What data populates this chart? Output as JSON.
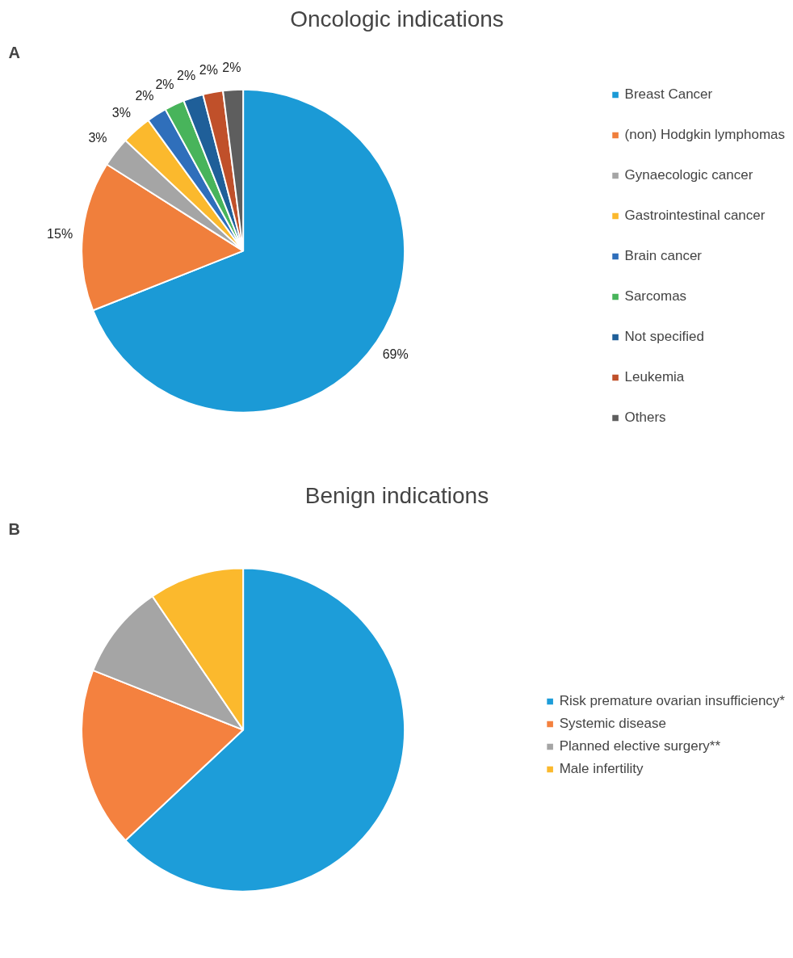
{
  "chart_data": [
    {
      "type": "pie",
      "title": "Oncologic indications",
      "annotations": [
        "A"
      ],
      "legend": "right",
      "categories": [
        "Breast Cancer",
        "(non) Hodgkin lymphomas",
        "Gynaecologic cancer",
        "Gastrointestinal cancer",
        "Brain cancer",
        "Sarcomas",
        "Not specified",
        "Leukemia",
        "Others"
      ],
      "values": [
        69,
        15,
        3,
        3,
        2,
        2,
        2,
        2,
        2
      ],
      "value_labels": [
        "69%",
        "15%",
        "3%",
        "3%",
        "2%",
        "2%",
        "2%",
        "2%",
        "2%"
      ],
      "colors": [
        "#1b9ad6",
        "#f07f3c",
        "#a5a5a5",
        "#fbb92d",
        "#2f6fbb",
        "#48b45b",
        "#1f5f99",
        "#c0502a",
        "#5e5e5e"
      ]
    },
    {
      "type": "pie",
      "title": "Benign indications",
      "annotations": [
        "B"
      ],
      "legend": "right",
      "categories": [
        "Risk premature ovarian insufficiency*",
        "Systemic disease",
        "Planned elective surgery**",
        "Male infertility"
      ],
      "values": [
        63,
        18,
        9.5,
        9.5
      ],
      "colors": [
        "#1d9dd9",
        "#f4813f",
        "#a5a5a5",
        "#fbb92d"
      ]
    }
  ]
}
